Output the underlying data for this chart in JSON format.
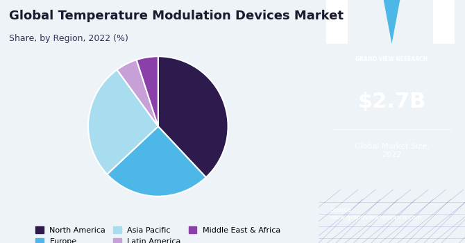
{
  "title": "Global Temperature Modulation Devices Market",
  "subtitle": "Share, by Region, 2022 (%)",
  "slices": [
    {
      "label": "North America",
      "value": 38,
      "color": "#2d1b4e"
    },
    {
      "label": "Europe",
      "value": 25,
      "color": "#4db8e8"
    },
    {
      "label": "Asia Pacific",
      "value": 27,
      "color": "#a8ddf0"
    },
    {
      "label": "Latin America",
      "value": 5,
      "color": "#c8a0d8"
    },
    {
      "label": "Middle East & Africa",
      "value": 5,
      "color": "#8b3fa8"
    }
  ],
  "startangle": 90,
  "left_bg": "#eef3f8",
  "right_bg": "#3b1a5e",
  "market_size": "$2.7B",
  "market_size_label": "Global Market Size,\n2022",
  "source_text": "Source:\nwww.grandviewresearch.com",
  "legend_cols": 3,
  "title_color": "#1a1a2e",
  "subtitle_color": "#333355"
}
